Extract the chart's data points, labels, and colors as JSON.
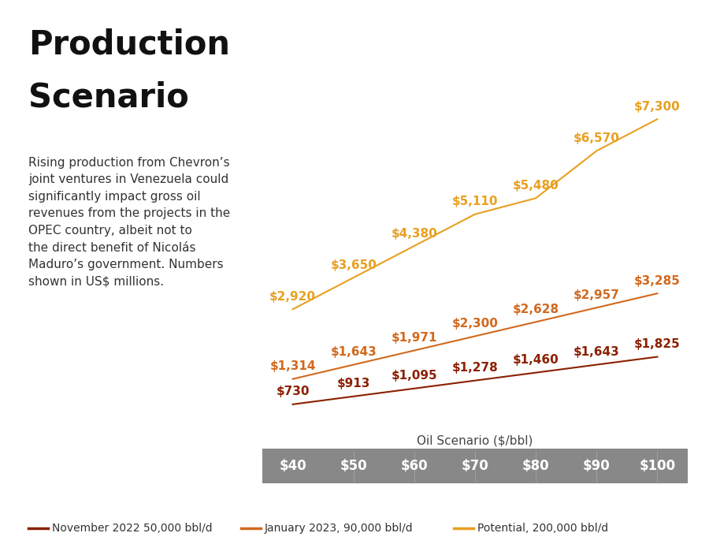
{
  "title_line1": "Production",
  "title_line2": "Scenario",
  "subtitle": "Rising production from Chevron’s\njoint ventures in Venezuela could\nsignificantly impact gross oil\nrevenues from the projects in the\nOPEC country, albeit not to\nthe direct benefit of Nicolás\nMaduro’s government. Numbers\nshown in US$ millions.",
  "x_values": [
    40,
    50,
    60,
    70,
    80,
    90,
    100
  ],
  "x_label": "Oil Scenario ($/bbl)",
  "x_tick_labels": [
    "$40",
    "$50",
    "$60",
    "$70",
    "$80",
    "$90",
    "$100"
  ],
  "series": [
    {
      "name": "November 2022 50,000 bbl/d",
      "color": "#8B2000",
      "values": [
        730,
        913,
        1095,
        1278,
        1460,
        1643,
        1825
      ],
      "labels": [
        "$730",
        "$913",
        "$1,095",
        "$1,278",
        "$1,460",
        "$1,643",
        "$1,825"
      ]
    },
    {
      "name": "January 2023, 90,000 bbl/d",
      "color": "#D2691E",
      "values": [
        1314,
        1643,
        1971,
        2300,
        2628,
        2957,
        3285
      ],
      "labels": [
        "$1,314",
        "$1,643",
        "$1,971",
        "$2,300",
        "$2,628",
        "$2,957",
        "$3,285"
      ]
    },
    {
      "name": "Potential, 200,000 bbl/d",
      "color": "#E8A020",
      "values": [
        2920,
        3650,
        4380,
        5110,
        5480,
        6570,
        7300
      ],
      "labels": [
        "$2,920",
        "$3,650",
        "$4,380",
        "$5,110",
        "$5,480",
        "$6,570",
        "$7,300"
      ]
    }
  ],
  "background_color": "#FFFFFF",
  "axis_bar_color": "#888888",
  "axis_bar_text_color": "#FFFFFF",
  "title_fontsize": 30,
  "subtitle_fontsize": 11,
  "label_fontsize": 11,
  "legend_fontsize": 10
}
